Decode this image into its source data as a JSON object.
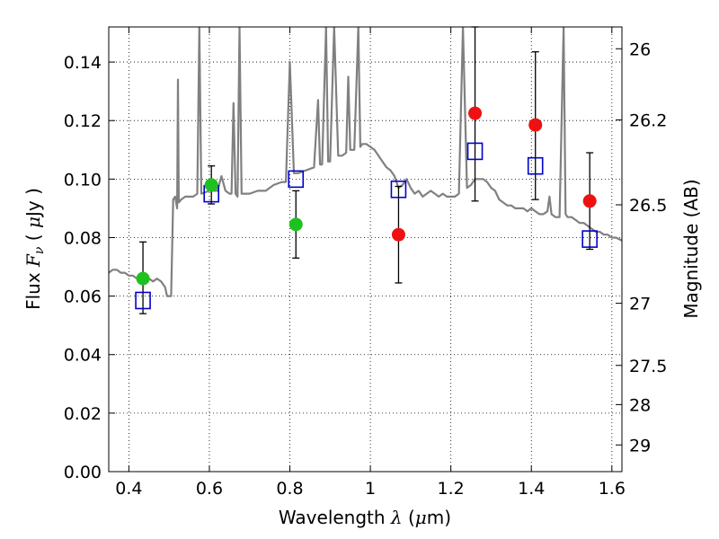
{
  "chart_data": {
    "type": "scatter",
    "xlabel": {
      "prefix": "Wavelength  ",
      "symbol": "λ",
      "units_open": " (",
      "mu": "μ",
      "units_rest": "m)"
    },
    "ylabel": {
      "prefix": "Flux  ",
      "symbol": "F",
      "subscript": "ν",
      "units_open": "  ( ",
      "mu": "μ",
      "units_rest": "Jy )"
    },
    "y2label": "Magnitude (AB)",
    "xlim": [
      0.35,
      1.625
    ],
    "ylim": [
      0.0,
      0.152
    ],
    "x_ticks": [
      {
        "value": 0.4,
        "label": "0.4"
      },
      {
        "value": 0.6,
        "label": "0.6"
      },
      {
        "value": 0.8,
        "label": "0.8"
      },
      {
        "value": 1.0,
        "label": "1"
      },
      {
        "value": 1.2,
        "label": "1.2"
      },
      {
        "value": 1.4,
        "label": "1.4"
      },
      {
        "value": 1.6,
        "label": "1.6"
      }
    ],
    "y_ticks": [
      {
        "value": 0.0,
        "label": "0.00"
      },
      {
        "value": 0.02,
        "label": "0.02"
      },
      {
        "value": 0.04,
        "label": "0.04"
      },
      {
        "value": 0.06,
        "label": "0.06"
      },
      {
        "value": 0.08,
        "label": "0.08"
      },
      {
        "value": 0.1,
        "label": "0.10"
      },
      {
        "value": 0.12,
        "label": "0.12"
      },
      {
        "value": 0.14,
        "label": "0.14"
      }
    ],
    "y2_ticks": [
      {
        "mag": 26,
        "label": "26"
      },
      {
        "mag": 26.2,
        "label": "26.2"
      },
      {
        "mag": 26.5,
        "label": "26.5"
      },
      {
        "mag": 27,
        "label": "27"
      },
      {
        "mag": 27.5,
        "label": "27.5"
      },
      {
        "mag": 28,
        "label": "28"
      },
      {
        "mag": 29,
        "label": "29"
      }
    ],
    "grid": true,
    "colors": {
      "model": "#808080",
      "green": "#1ec21e",
      "red": "#ee1111",
      "square": "#0000cc",
      "errorbar": "#000000"
    },
    "model_spectrum": [
      [
        0.35,
        0.068
      ],
      [
        0.36,
        0.069
      ],
      [
        0.37,
        0.069
      ],
      [
        0.38,
        0.068
      ],
      [
        0.39,
        0.068
      ],
      [
        0.4,
        0.067
      ],
      [
        0.41,
        0.067
      ],
      [
        0.42,
        0.066
      ],
      [
        0.43,
        0.066
      ],
      [
        0.44,
        0.067
      ],
      [
        0.45,
        0.066
      ],
      [
        0.46,
        0.065
      ],
      [
        0.47,
        0.066
      ],
      [
        0.48,
        0.065
      ],
      [
        0.49,
        0.063
      ],
      [
        0.495,
        0.06
      ],
      [
        0.505,
        0.06
      ],
      [
        0.51,
        0.093
      ],
      [
        0.515,
        0.094
      ],
      [
        0.52,
        0.09
      ],
      [
        0.522,
        0.134
      ],
      [
        0.524,
        0.092
      ],
      [
        0.53,
        0.093
      ],
      [
        0.54,
        0.094
      ],
      [
        0.55,
        0.094
      ],
      [
        0.56,
        0.094
      ],
      [
        0.57,
        0.095
      ],
      [
        0.575,
        0.152
      ],
      [
        0.58,
        0.095
      ],
      [
        0.6,
        0.096
      ],
      [
        0.62,
        0.096
      ],
      [
        0.63,
        0.101
      ],
      [
        0.64,
        0.096
      ],
      [
        0.65,
        0.095
      ],
      [
        0.655,
        0.095
      ],
      [
        0.66,
        0.126
      ],
      [
        0.665,
        0.095
      ],
      [
        0.67,
        0.094
      ],
      [
        0.675,
        0.152
      ],
      [
        0.68,
        0.095
      ],
      [
        0.7,
        0.095
      ],
      [
        0.72,
        0.096
      ],
      [
        0.74,
        0.096
      ],
      [
        0.75,
        0.097
      ],
      [
        0.76,
        0.098
      ],
      [
        0.78,
        0.099
      ],
      [
        0.79,
        0.099
      ],
      [
        0.8,
        0.14
      ],
      [
        0.81,
        0.102
      ],
      [
        0.82,
        0.102
      ],
      [
        0.84,
        0.103
      ],
      [
        0.86,
        0.104
      ],
      [
        0.87,
        0.127
      ],
      [
        0.875,
        0.105
      ],
      [
        0.88,
        0.105
      ],
      [
        0.89,
        0.152
      ],
      [
        0.895,
        0.106
      ],
      [
        0.9,
        0.106
      ],
      [
        0.91,
        0.152
      ],
      [
        0.92,
        0.108
      ],
      [
        0.93,
        0.108
      ],
      [
        0.94,
        0.109
      ],
      [
        0.945,
        0.135
      ],
      [
        0.95,
        0.11
      ],
      [
        0.96,
        0.11
      ],
      [
        0.97,
        0.152
      ],
      [
        0.975,
        0.111
      ],
      [
        0.98,
        0.112
      ],
      [
        0.99,
        0.112
      ],
      [
        1.0,
        0.111
      ],
      [
        1.01,
        0.11
      ],
      [
        1.02,
        0.108
      ],
      [
        1.03,
        0.106
      ],
      [
        1.04,
        0.104
      ],
      [
        1.05,
        0.103
      ],
      [
        1.06,
        0.101
      ],
      [
        1.07,
        0.097
      ],
      [
        1.08,
        0.098
      ],
      [
        1.09,
        0.1
      ],
      [
        1.1,
        0.097
      ],
      [
        1.11,
        0.095
      ],
      [
        1.12,
        0.096
      ],
      [
        1.13,
        0.094
      ],
      [
        1.14,
        0.095
      ],
      [
        1.15,
        0.096
      ],
      [
        1.16,
        0.095
      ],
      [
        1.17,
        0.094
      ],
      [
        1.18,
        0.095
      ],
      [
        1.19,
        0.094
      ],
      [
        1.2,
        0.094
      ],
      [
        1.21,
        0.094
      ],
      [
        1.22,
        0.095
      ],
      [
        1.23,
        0.152
      ],
      [
        1.24,
        0.097
      ],
      [
        1.25,
        0.098
      ],
      [
        1.26,
        0.1
      ],
      [
        1.27,
        0.1
      ],
      [
        1.28,
        0.1
      ],
      [
        1.29,
        0.099
      ],
      [
        1.3,
        0.097
      ],
      [
        1.31,
        0.096
      ],
      [
        1.32,
        0.093
      ],
      [
        1.33,
        0.092
      ],
      [
        1.34,
        0.091
      ],
      [
        1.35,
        0.091
      ],
      [
        1.36,
        0.09
      ],
      [
        1.37,
        0.09
      ],
      [
        1.38,
        0.09
      ],
      [
        1.39,
        0.089
      ],
      [
        1.4,
        0.09
      ],
      [
        1.41,
        0.089
      ],
      [
        1.42,
        0.088
      ],
      [
        1.43,
        0.088
      ],
      [
        1.44,
        0.089
      ],
      [
        1.445,
        0.094
      ],
      [
        1.45,
        0.088
      ],
      [
        1.46,
        0.087
      ],
      [
        1.47,
        0.087
      ],
      [
        1.48,
        0.152
      ],
      [
        1.485,
        0.088
      ],
      [
        1.49,
        0.087
      ],
      [
        1.5,
        0.087
      ],
      [
        1.51,
        0.086
      ],
      [
        1.52,
        0.085
      ],
      [
        1.53,
        0.085
      ],
      [
        1.54,
        0.084
      ],
      [
        1.55,
        0.083
      ],
      [
        1.56,
        0.082
      ],
      [
        1.57,
        0.082
      ],
      [
        1.58,
        0.081
      ],
      [
        1.59,
        0.081
      ],
      [
        1.6,
        0.08
      ],
      [
        1.61,
        0.08
      ],
      [
        1.625,
        0.079
      ]
    ],
    "model_points": [
      {
        "x": 0.435,
        "y": 0.0585
      },
      {
        "x": 0.605,
        "y": 0.095
      },
      {
        "x": 0.815,
        "y": 0.1
      },
      {
        "x": 1.07,
        "y": 0.0965
      },
      {
        "x": 1.26,
        "y": 0.1095
      },
      {
        "x": 1.41,
        "y": 0.1045
      },
      {
        "x": 1.545,
        "y": 0.0795
      }
    ],
    "green_points": [
      {
        "x": 0.435,
        "y": 0.066,
        "err_low": 0.012,
        "err_high": 0.0125
      },
      {
        "x": 0.605,
        "y": 0.098,
        "err_low": 0.0065,
        "err_high": 0.0065
      },
      {
        "x": 0.815,
        "y": 0.0845,
        "err_low": 0.0115,
        "err_high": 0.0115
      }
    ],
    "red_points": [
      {
        "x": 1.07,
        "y": 0.081,
        "err_low": 0.0165,
        "err_high": 0.0165
      },
      {
        "x": 1.26,
        "y": 0.1225,
        "err_low": 0.03,
        "err_high": 0.0295
      },
      {
        "x": 1.41,
        "y": 0.1185,
        "err_low": 0.0255,
        "err_high": 0.025
      },
      {
        "x": 1.545,
        "y": 0.0925,
        "err_low": 0.0165,
        "err_high": 0.0165
      }
    ]
  }
}
